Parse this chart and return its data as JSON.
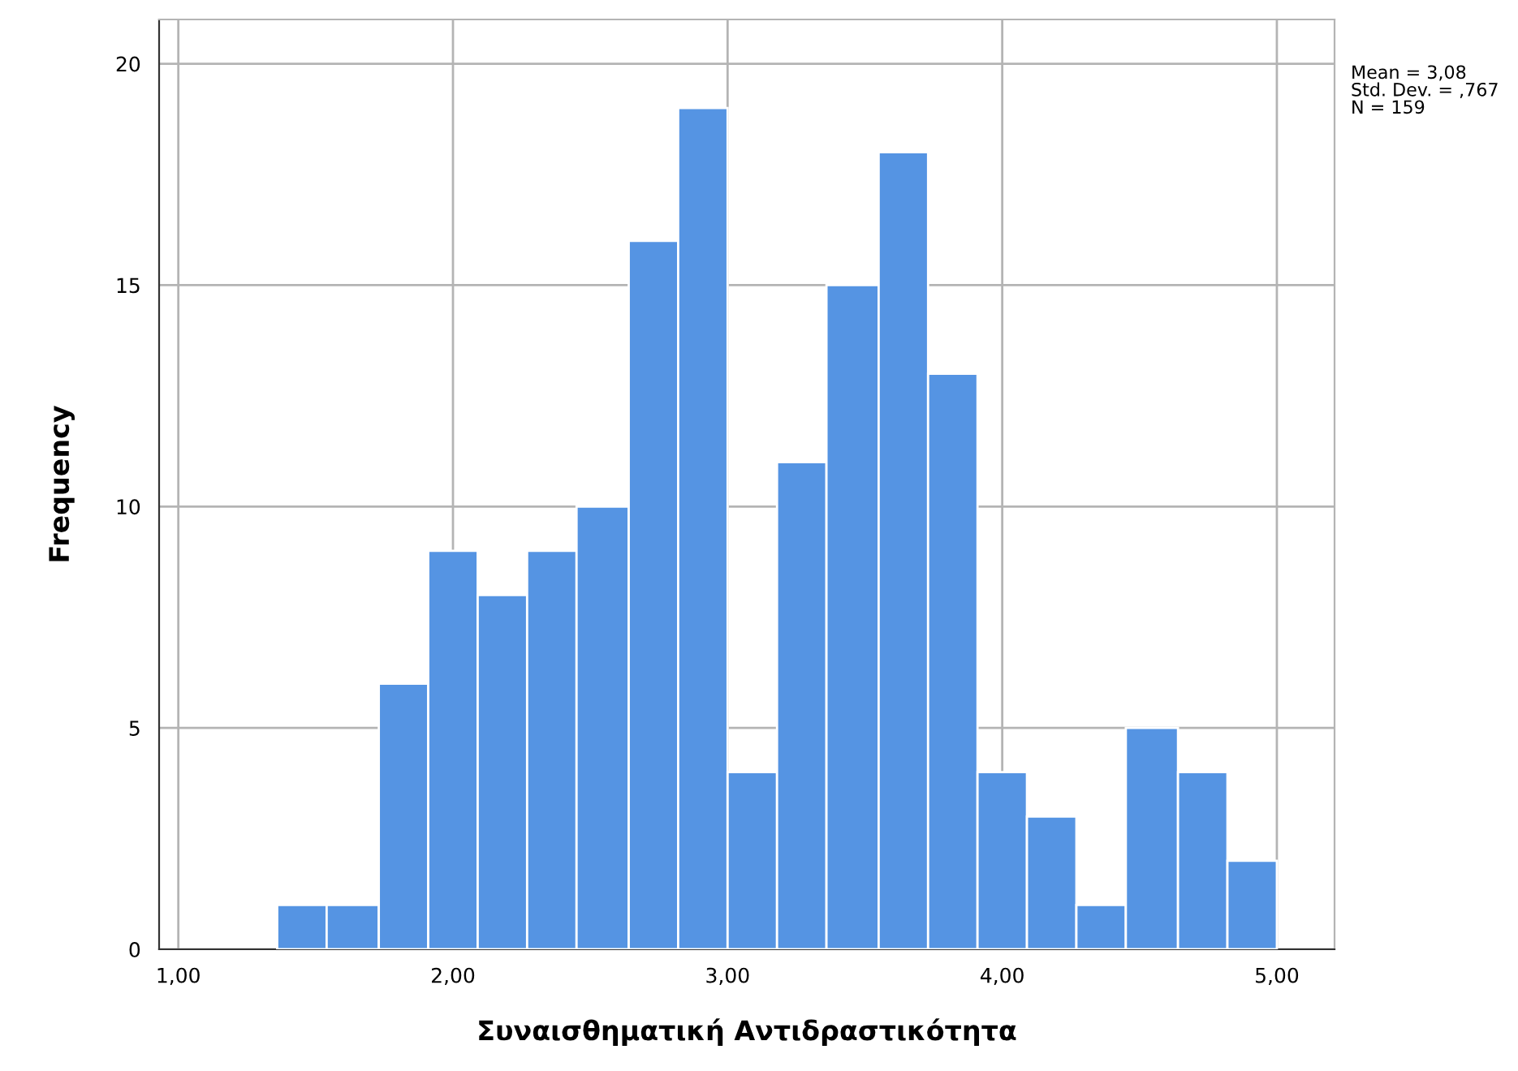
{
  "chart_data": {
    "type": "histogram",
    "xlabel": "Συναισθηματική Αντιδραστικότητα",
    "ylabel": "Frequency",
    "bins": [
      1.36,
      1.54,
      1.73,
      1.91,
      2.09,
      2.27,
      2.45,
      2.64,
      2.82,
      3.0,
      3.18,
      3.36,
      3.55,
      3.73,
      3.91,
      4.09,
      4.27,
      4.45,
      4.64,
      4.82,
      5.0
    ],
    "values": [
      1,
      1,
      6,
      9,
      8,
      9,
      10,
      16,
      19,
      4,
      11,
      15,
      18,
      13,
      4,
      3,
      1,
      5,
      4,
      2
    ],
    "color": "#5594e3",
    "xlim": [
      0.93,
      5.21
    ],
    "ylim": [
      0,
      21
    ],
    "xticks": [
      {
        "value": 1,
        "label": "1,00"
      },
      {
        "value": 2,
        "label": "2,00"
      },
      {
        "value": 3,
        "label": "3,00"
      },
      {
        "value": 4,
        "label": "4,00"
      },
      {
        "value": 5,
        "label": "5,00"
      }
    ],
    "yticks": [
      0,
      5,
      10,
      15,
      20
    ],
    "grid": true,
    "annotations": [
      "Mean = 3,08\nStd. Dev. = ,767\nN = 159"
    ]
  }
}
